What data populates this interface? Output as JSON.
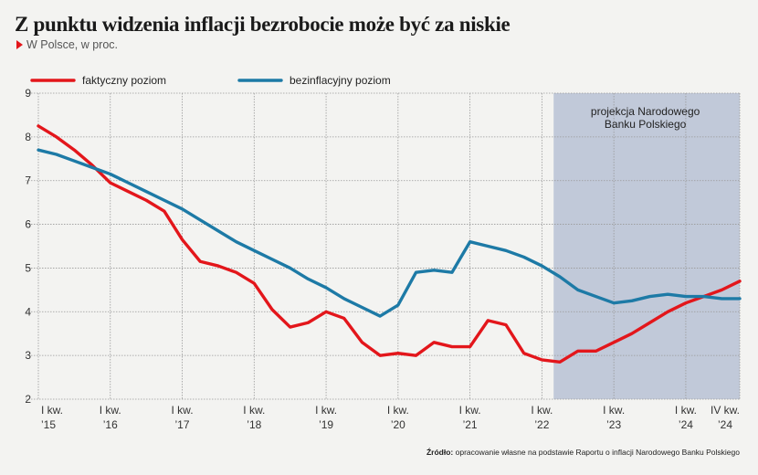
{
  "title": "Z punktu widzenia inflacji bezrobocie może być za niskie",
  "subtitle": "W Polsce, w proc.",
  "source_label": "Źródło:",
  "source_text": "opracowanie własne na podstawie Raportu o inflacji Narodowego Banku Polskiego",
  "colors": {
    "actual": "#e3161b",
    "nairu": "#1d7aa6",
    "projection_band": "#c1c9d9",
    "grid": "#999999"
  },
  "chart_data": {
    "type": "line",
    "title": "Z punktu widzenia inflacji bezrobocie może być za niskie",
    "ylabel": "",
    "xlabel": "",
    "ylim": [
      2,
      9
    ],
    "yticks": [
      2,
      3,
      4,
      5,
      6,
      7,
      8,
      9
    ],
    "xlim": [
      0,
      39
    ],
    "grid": true,
    "legend_position": "top-left",
    "x_ticks": [
      {
        "x": 0,
        "line1": "I kw.",
        "line2": "’15"
      },
      {
        "x": 4,
        "line1": "I kw.",
        "line2": "’16"
      },
      {
        "x": 8,
        "line1": "I kw.",
        "line2": "’17"
      },
      {
        "x": 12,
        "line1": "I kw.",
        "line2": "’18"
      },
      {
        "x": 16,
        "line1": "I kw.",
        "line2": "’19"
      },
      {
        "x": 20,
        "line1": "I kw.",
        "line2": "’20"
      },
      {
        "x": 24,
        "line1": "I kw.",
        "line2": "’21"
      },
      {
        "x": 28,
        "line1": "I kw.",
        "line2": "’22"
      },
      {
        "x": 32,
        "line1": "I kw.",
        "line2": "’23"
      },
      {
        "x": 36,
        "line1": "I kw.",
        "line2": "’24"
      },
      {
        "x": 39,
        "line1": "IV kw.",
        "line2": "’24"
      }
    ],
    "projection": {
      "from": 28.5,
      "to": 39,
      "label_line1": "projekcja Narodowego",
      "label_line2": "Banku Polskiego"
    },
    "series": [
      {
        "name": "faktyczny poziom",
        "key": "actual",
        "values": [
          8.25,
          8.0,
          7.7,
          7.35,
          6.95,
          6.75,
          6.55,
          6.3,
          5.65,
          5.15,
          5.05,
          4.9,
          4.65,
          4.05,
          3.65,
          3.75,
          4.0,
          3.85,
          3.3,
          3.0,
          3.05,
          3.0,
          3.3,
          3.2,
          3.2,
          3.8,
          3.7,
          3.05,
          2.9,
          2.85,
          3.1,
          3.1,
          3.3,
          3.5,
          3.75,
          4.0,
          4.2,
          4.35,
          4.5,
          4.7
        ]
      },
      {
        "name": "bezinflacyjny poziom",
        "key": "nairu",
        "values": [
          7.7,
          7.6,
          7.45,
          7.3,
          7.15,
          6.95,
          6.75,
          6.55,
          6.35,
          6.1,
          5.85,
          5.6,
          5.4,
          5.2,
          5.0,
          4.75,
          4.55,
          4.3,
          4.1,
          3.9,
          4.15,
          4.9,
          4.95,
          4.9,
          5.6,
          5.5,
          5.4,
          5.25,
          5.05,
          4.8,
          4.5,
          4.35,
          4.2,
          4.25,
          4.35,
          4.4,
          4.35,
          4.35,
          4.3,
          4.3
        ]
      }
    ]
  }
}
